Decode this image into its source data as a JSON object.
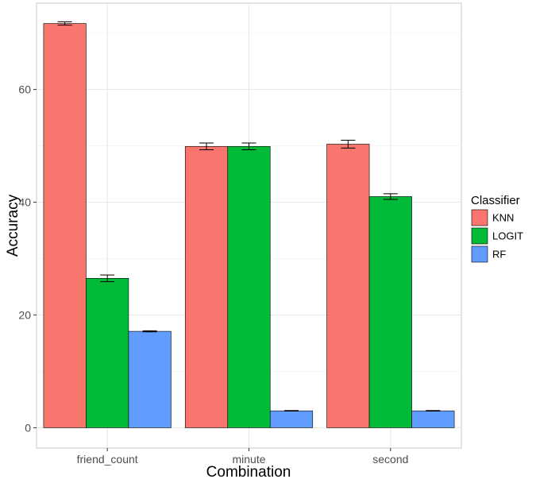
{
  "chart_data": {
    "type": "bar",
    "xlabel": "Combination",
    "ylabel": "Accuracy",
    "categories": [
      "friend_count",
      "minute",
      "second"
    ],
    "series": [
      {
        "name": "KNN",
        "color": "#F8766D",
        "values": [
          71.7,
          49.9,
          50.3
        ],
        "error": [
          0.3,
          0.6,
          0.7
        ]
      },
      {
        "name": "LOGIT",
        "color": "#00BA38",
        "values": [
          26.5,
          49.9,
          41.0
        ],
        "error": [
          0.6,
          0.6,
          0.5
        ]
      },
      {
        "name": "RF",
        "color": "#619CFF",
        "values": [
          17.1,
          3.0,
          3.0
        ],
        "error": [
          0.1,
          0.05,
          0.05
        ]
      }
    ],
    "ylim": [
      -3.6,
      75.3
    ],
    "yticks": [
      0,
      20,
      40,
      60
    ],
    "legend": {
      "title": "Classifier",
      "position": "right"
    },
    "grid": true,
    "error_bars": true
  }
}
